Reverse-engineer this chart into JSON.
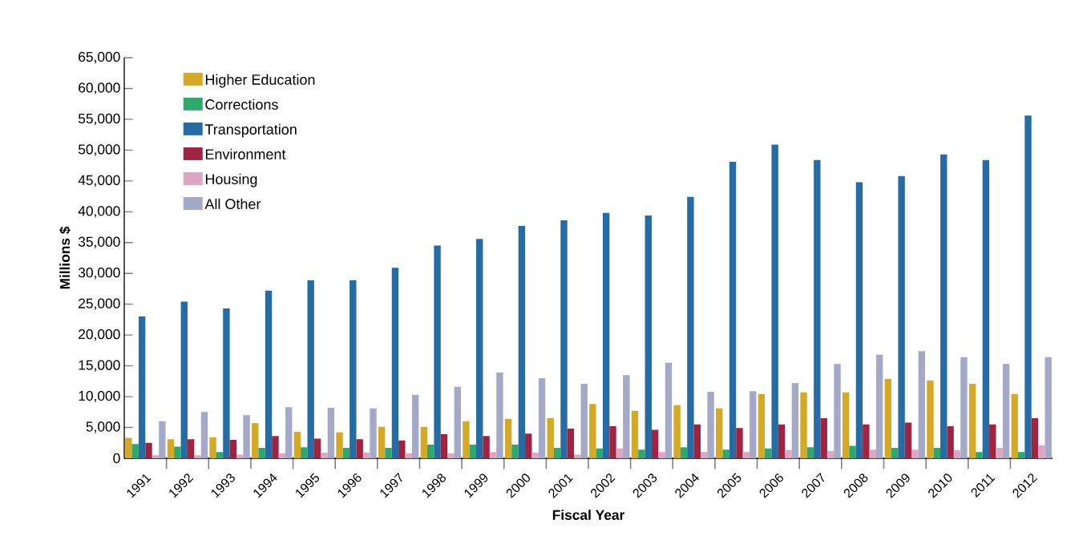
{
  "chart_data": {
    "type": "bar",
    "xlabel": "Fiscal Year",
    "ylabel": "Millions $",
    "categories": [
      "1991",
      "1992",
      "1993",
      "1994",
      "1995",
      "1996",
      "1997",
      "1998",
      "1999",
      "2000",
      "2001",
      "2002",
      "2003",
      "2004",
      "2005",
      "2006",
      "2007",
      "2008",
      "2009",
      "2010",
      "2011",
      "2012"
    ],
    "series": [
      {
        "name": "Higher Education",
        "color": "#d4a926",
        "values": [
          3300,
          3100,
          3400,
          5700,
          4300,
          4200,
          5100,
          5100,
          6000,
          6400,
          6500,
          8800,
          7700,
          8600,
          8100,
          10400,
          10700,
          10700,
          12900,
          12600,
          12100,
          10400
        ]
      },
      {
        "name": "Corrections",
        "color": "#2fa86e",
        "values": [
          2300,
          1900,
          1000,
          1700,
          1800,
          1700,
          1700,
          2200,
          2200,
          2200,
          1700,
          1600,
          1400,
          1800,
          1400,
          1600,
          1800,
          2000,
          1700,
          1700,
          1000,
          1000
        ]
      },
      {
        "name": "Transportation",
        "color": "#246ca3",
        "values": [
          23000,
          25400,
          24300,
          27200,
          28900,
          28900,
          30900,
          34500,
          35600,
          37700,
          38600,
          39800,
          39400,
          42400,
          48100,
          50900,
          48400,
          44800,
          45800,
          49300,
          48400,
          55600
        ]
      },
      {
        "name": "Environment",
        "color": "#9e2442",
        "values": [
          2500,
          3100,
          3000,
          3600,
          3200,
          3100,
          2900,
          3900,
          3600,
          4000,
          4800,
          5200,
          4600,
          5500,
          4900,
          5500,
          6500,
          5500,
          5800,
          5200,
          5500,
          6500
        ]
      },
      {
        "name": "Housing",
        "color": "#dca6c4",
        "values": [
          500,
          500,
          600,
          800,
          900,
          900,
          800,
          800,
          1000,
          900,
          600,
          1600,
          1000,
          1000,
          1000,
          1300,
          1200,
          1400,
          1400,
          1300,
          1700,
          2100
        ]
      },
      {
        "name": "All Other",
        "color": "#a5a9c8",
        "values": [
          6000,
          7500,
          7000,
          8300,
          8200,
          8100,
          10300,
          11600,
          13900,
          13000,
          12100,
          13500,
          15500,
          10800,
          10900,
          12200,
          15300,
          16800,
          17400,
          16400,
          15300,
          16400
        ]
      }
    ],
    "ylim": [
      0,
      65000
    ],
    "yticks": [
      {
        "value": 0,
        "label": "0"
      },
      {
        "value": 5000,
        "label": "5,000"
      },
      {
        "value": 10000,
        "label": "10,000"
      },
      {
        "value": 15000,
        "label": "15,000"
      },
      {
        "value": 20000,
        "label": "20,000"
      },
      {
        "value": 25000,
        "label": "25,000"
      },
      {
        "value": 30000,
        "label": "30,000"
      },
      {
        "value": 35000,
        "label": "35,000"
      },
      {
        "value": 40000,
        "label": "40,000"
      },
      {
        "value": 45000,
        "label": "45,000"
      },
      {
        "value": 50000,
        "label": "50,000"
      },
      {
        "value": 55000,
        "label": "55,000"
      },
      {
        "value": 60000,
        "label": "60,000"
      },
      {
        "value": 65000,
        "label": "65,000"
      }
    ],
    "legend": "top left"
  }
}
